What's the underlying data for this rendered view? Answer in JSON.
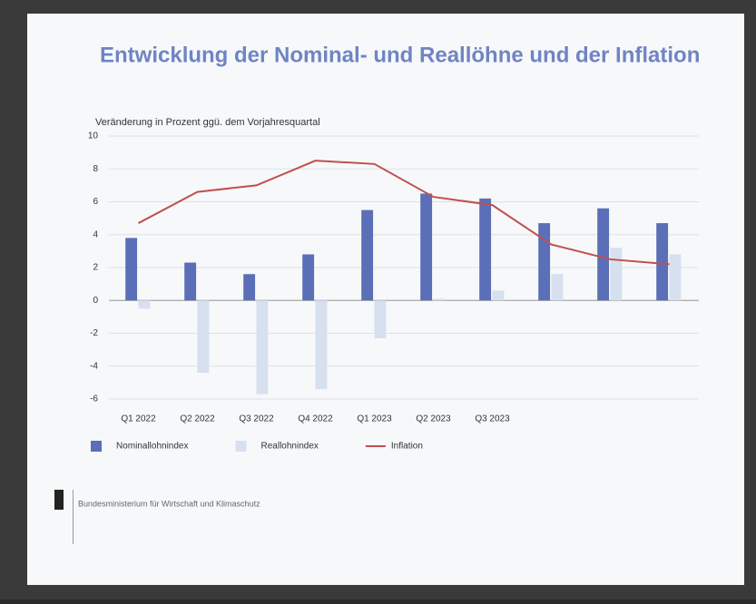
{
  "chart_data": {
    "type": "bar-line",
    "title": "Entwicklung der Nominal- und Reallöhne und der Inflation",
    "subtitle": "Veränderung in Prozent ggü. dem Vorjahresquartal",
    "categories": [
      "Q1 2022",
      "Q2 2022",
      "Q3 2022",
      "Q4 2022",
      "Q1 2023",
      "Q2 2023",
      "Q3 2023",
      null,
      null,
      null
    ],
    "series": [
      {
        "name": "Nominallohnindex",
        "color": "#5b6fb8",
        "kind": "bar",
        "values": [
          3.8,
          2.3,
          1.6,
          2.8,
          5.5,
          6.5,
          6.2,
          4.7,
          5.6,
          4.7
        ]
      },
      {
        "name": "Reallohnindex",
        "color": "#d6e0ef",
        "kind": "bar",
        "values": [
          -0.5,
          -4.4,
          -5.7,
          -5.4,
          -2.3,
          0.1,
          0.6,
          1.6,
          3.2,
          2.8
        ]
      },
      {
        "name": "Inflation",
        "color": "#c0504d",
        "kind": "line",
        "values": [
          4.7,
          6.6,
          7.0,
          8.5,
          8.3,
          6.3,
          5.8,
          3.4,
          2.5,
          2.2
        ]
      }
    ],
    "ylim": [
      -6,
      10
    ],
    "yticks": [
      10,
      8,
      6,
      4,
      2,
      0,
      -2,
      -4,
      -6
    ],
    "grid": true,
    "logo": "Bundesministerium für Wirtschaft und Klimaschutz"
  }
}
